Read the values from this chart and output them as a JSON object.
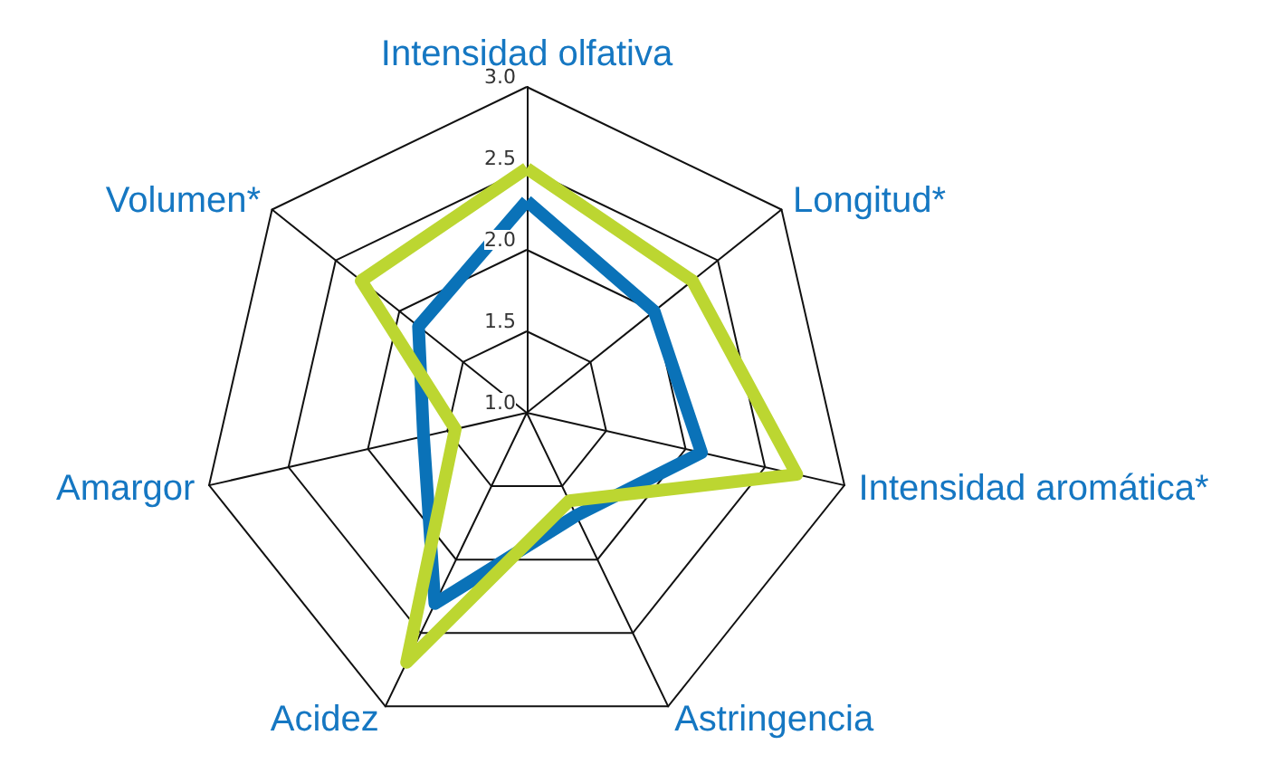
{
  "chart_data": {
    "type": "radar",
    "categories": [
      "Intensidad olfativa",
      "Longitud*",
      "Intensidad aromática*",
      "Astringencia",
      "Acidez",
      "Amargor",
      "Volumen*"
    ],
    "series": [
      {
        "color": "#0a72b8",
        "values": [
          2.3,
          2.0,
          2.1,
          1.7,
          2.3,
          1.65,
          1.85
        ]
      },
      {
        "color": "#bcd631",
        "values": [
          2.5,
          2.3,
          2.7,
          1.6,
          2.7,
          1.45,
          2.3
        ]
      }
    ],
    "ylim": [
      1,
      3
    ],
    "yticks": [
      {
        "value": 1,
        "label": "1.0"
      },
      1.5,
      {
        "value": 2,
        "label": "2.0"
      },
      2.5,
      {
        "value": 3,
        "label": "3.0"
      }
    ]
  }
}
